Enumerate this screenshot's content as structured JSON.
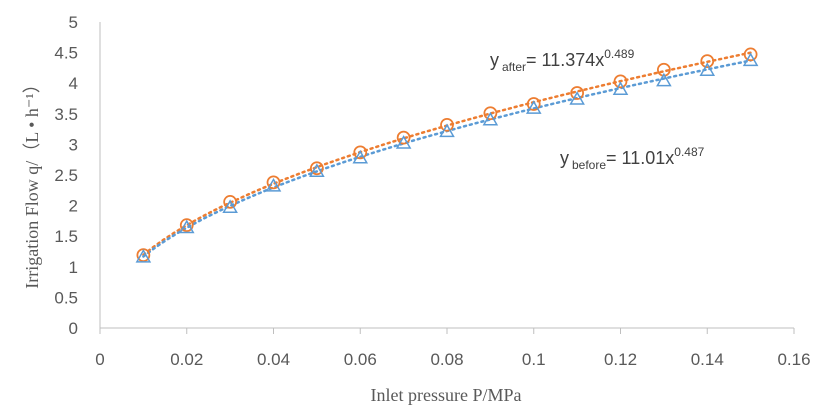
{
  "chart_data": {
    "type": "scatter",
    "xlabel": "Inlet pressure  P/MPa",
    "ylabel": "Irrigation Flow  q/（L • h⁻¹）",
    "xlim": [
      0,
      0.16
    ],
    "ylim": [
      0,
      5
    ],
    "x_ticks": [
      "0",
      "0.02",
      "0.04",
      "0.06",
      "0.08",
      "0.1",
      "0.12",
      "0.14",
      "0.16"
    ],
    "y_ticks": [
      "0",
      "0.5",
      "1",
      "1.5",
      "2",
      "2.5",
      "3",
      "3.5",
      "4",
      "4.5",
      "5"
    ],
    "grid": false,
    "x": [
      0.01,
      0.02,
      0.03,
      0.04,
      0.05,
      0.06,
      0.07,
      0.08,
      0.09,
      0.1,
      0.11,
      0.12,
      0.13,
      0.14,
      0.15
    ],
    "series": [
      {
        "marker": "circle",
        "color": "#ED7D31",
        "values": [
          1.19,
          1.68,
          2.06,
          2.38,
          2.61,
          2.87,
          3.11,
          3.32,
          3.51,
          3.66,
          3.84,
          4.03,
          4.22,
          4.36,
          4.47
        ],
        "trendline": {
          "a": 11.374,
          "b": 0.489
        },
        "equation": {
          "y": "y",
          "sub": "after",
          "mid": "= 11.374x",
          "sup": "0.489"
        }
      },
      {
        "marker": "triangle",
        "color": "#5B9BD5",
        "values": [
          1.16,
          1.64,
          1.97,
          2.32,
          2.56,
          2.78,
          3.02,
          3.21,
          3.4,
          3.59,
          3.74,
          3.9,
          4.04,
          4.21,
          4.37
        ],
        "trendline": {
          "a": 11.01,
          "b": 0.487
        },
        "equation": {
          "y": "y",
          "sub": "before",
          "mid": "= 11.01x",
          "sup": "0.487"
        }
      }
    ]
  }
}
